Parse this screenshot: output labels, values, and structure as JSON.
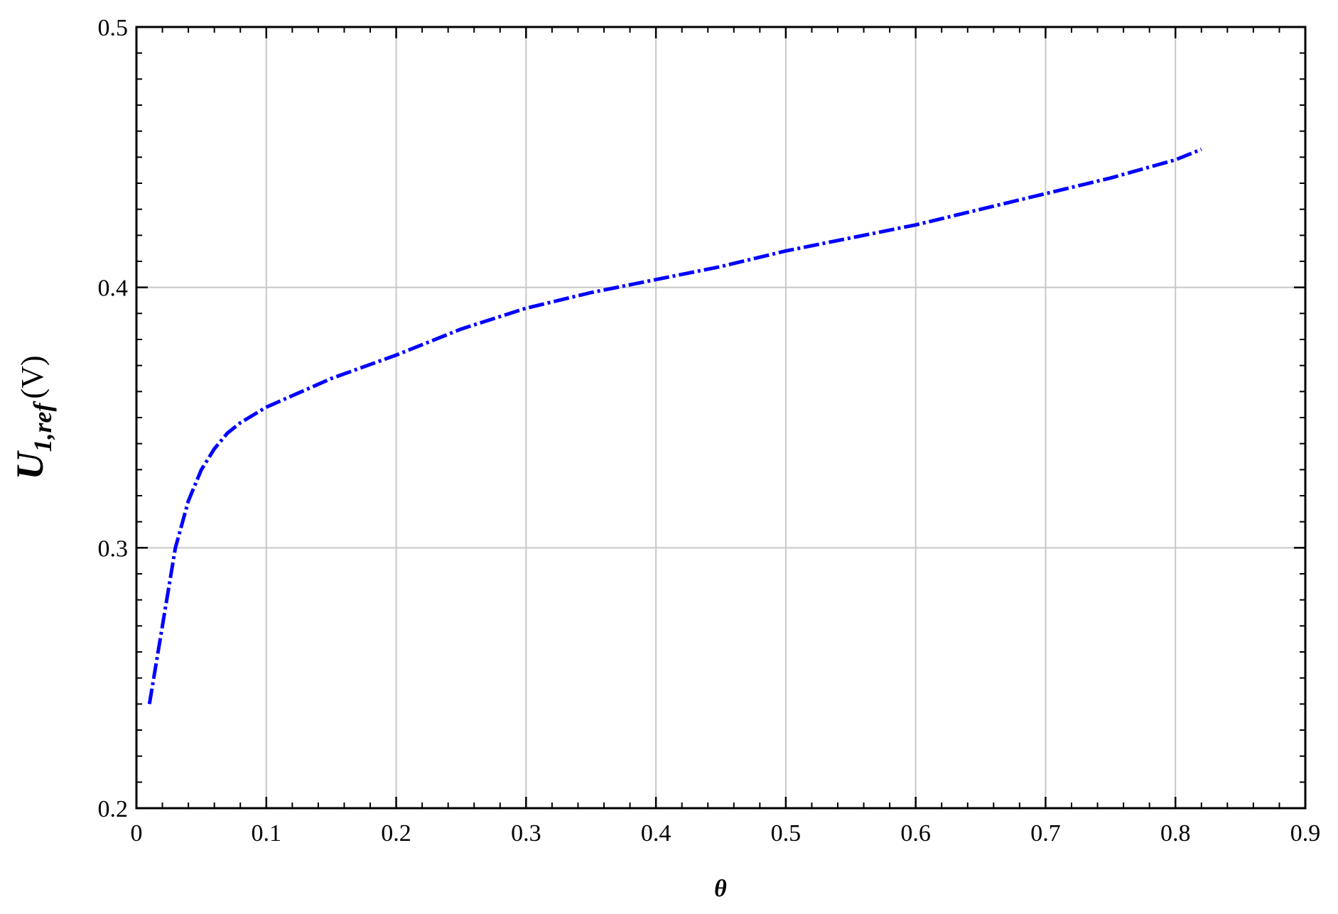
{
  "chart_data": {
    "type": "line",
    "ylabel": {
      "main": "U",
      "sub": "1,ref",
      "unit": "(V)"
    },
    "xlabel": "θ",
    "x": [
      0.01,
      0.02,
      0.03,
      0.04,
      0.05,
      0.06,
      0.07,
      0.08,
      0.1,
      0.15,
      0.2,
      0.25,
      0.3,
      0.35,
      0.4,
      0.45,
      0.5,
      0.55,
      0.6,
      0.65,
      0.7,
      0.75,
      0.8,
      0.82
    ],
    "values": [
      0.24,
      0.27,
      0.3,
      0.318,
      0.33,
      0.338,
      0.344,
      0.348,
      0.354,
      0.365,
      0.374,
      0.384,
      0.392,
      0.398,
      0.403,
      0.408,
      0.414,
      0.419,
      0.424,
      0.43,
      0.436,
      0.442,
      0.449,
      0.453
    ],
    "color": "#0000ff",
    "xlim": [
      0,
      0.9
    ],
    "xticks": [
      0,
      0.1,
      0.2,
      0.3,
      0.4,
      0.5,
      0.6,
      0.7,
      0.8,
      0.9
    ],
    "ylim": [
      0.2,
      0.5
    ],
    "yticks": [
      0.2,
      0.3,
      0.4,
      0.5
    ],
    "grid": true
  }
}
